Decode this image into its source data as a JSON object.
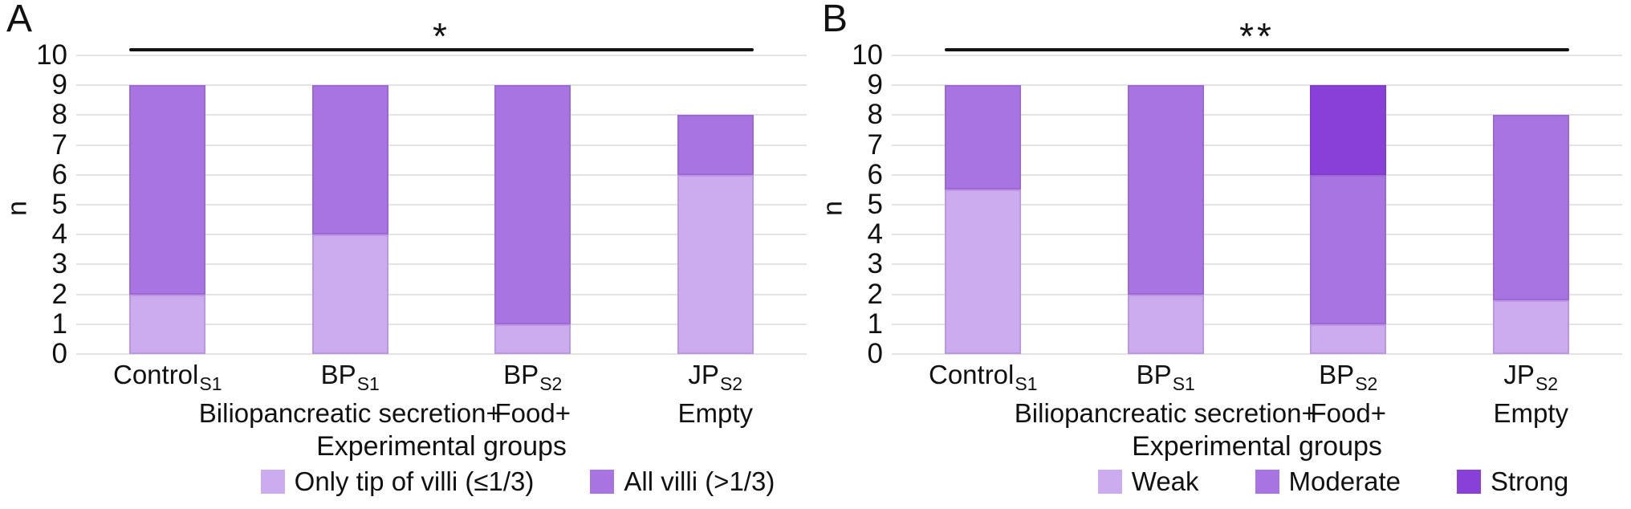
{
  "figure": {
    "background": "#ffffff"
  },
  "chart_data": [
    {
      "panel": "A",
      "type": "bar",
      "stacked": true,
      "ylabel": "n",
      "xlabel": "Experimental groups",
      "ylim": [
        0,
        10
      ],
      "yticks": [
        0,
        1,
        2,
        3,
        4,
        5,
        6,
        7,
        8,
        9,
        10
      ],
      "grid": "horizontal",
      "legend_position": "bottom",
      "significance": {
        "label": "*",
        "from_category": 0,
        "to_category": 3
      },
      "categories": [
        {
          "name": "Control",
          "sub": "S1",
          "note": ""
        },
        {
          "name": "BP",
          "sub": "S1",
          "note": "Biliopancreatic secretion+"
        },
        {
          "name": "BP",
          "sub": "S2",
          "note": "Food+"
        },
        {
          "name": "JP",
          "sub": "S2",
          "note": "Empty"
        }
      ],
      "series": [
        {
          "name": "Only tip of villi (≤1/3)",
          "color": "#ccabef",
          "values": [
            2,
            4,
            1,
            6
          ]
        },
        {
          "name": "All villi (>1/3)",
          "color": "#a874e2",
          "values": [
            7,
            5,
            8,
            2
          ]
        }
      ],
      "totals": [
        9,
        9,
        9,
        8
      ]
    },
    {
      "panel": "B",
      "type": "bar",
      "stacked": true,
      "ylabel": "n",
      "xlabel": "Experimental groups",
      "ylim": [
        0,
        10
      ],
      "yticks": [
        0,
        1,
        2,
        3,
        4,
        5,
        6,
        7,
        8,
        9,
        10
      ],
      "grid": "horizontal",
      "legend_position": "bottom",
      "significance": {
        "label": "**",
        "from_category": 0,
        "to_category": 3
      },
      "categories": [
        {
          "name": "Control",
          "sub": "S1",
          "note": ""
        },
        {
          "name": "BP",
          "sub": "S1",
          "note": "Biliopancreatic secretion+"
        },
        {
          "name": "BP",
          "sub": "S2",
          "note": "Food+"
        },
        {
          "name": "JP",
          "sub": "S2",
          "note": "Empty"
        }
      ],
      "series": [
        {
          "name": "Weak",
          "color": "#ccabef",
          "values": [
            5.5,
            2,
            1,
            1.8
          ]
        },
        {
          "name": "Moderate",
          "color": "#a874e2",
          "values": [
            3.5,
            7,
            5,
            6.2
          ]
        },
        {
          "name": "Strong",
          "color": "#8840d8",
          "values": [
            0,
            0,
            3,
            0
          ]
        }
      ],
      "totals": [
        9,
        9,
        9,
        8
      ]
    }
  ]
}
